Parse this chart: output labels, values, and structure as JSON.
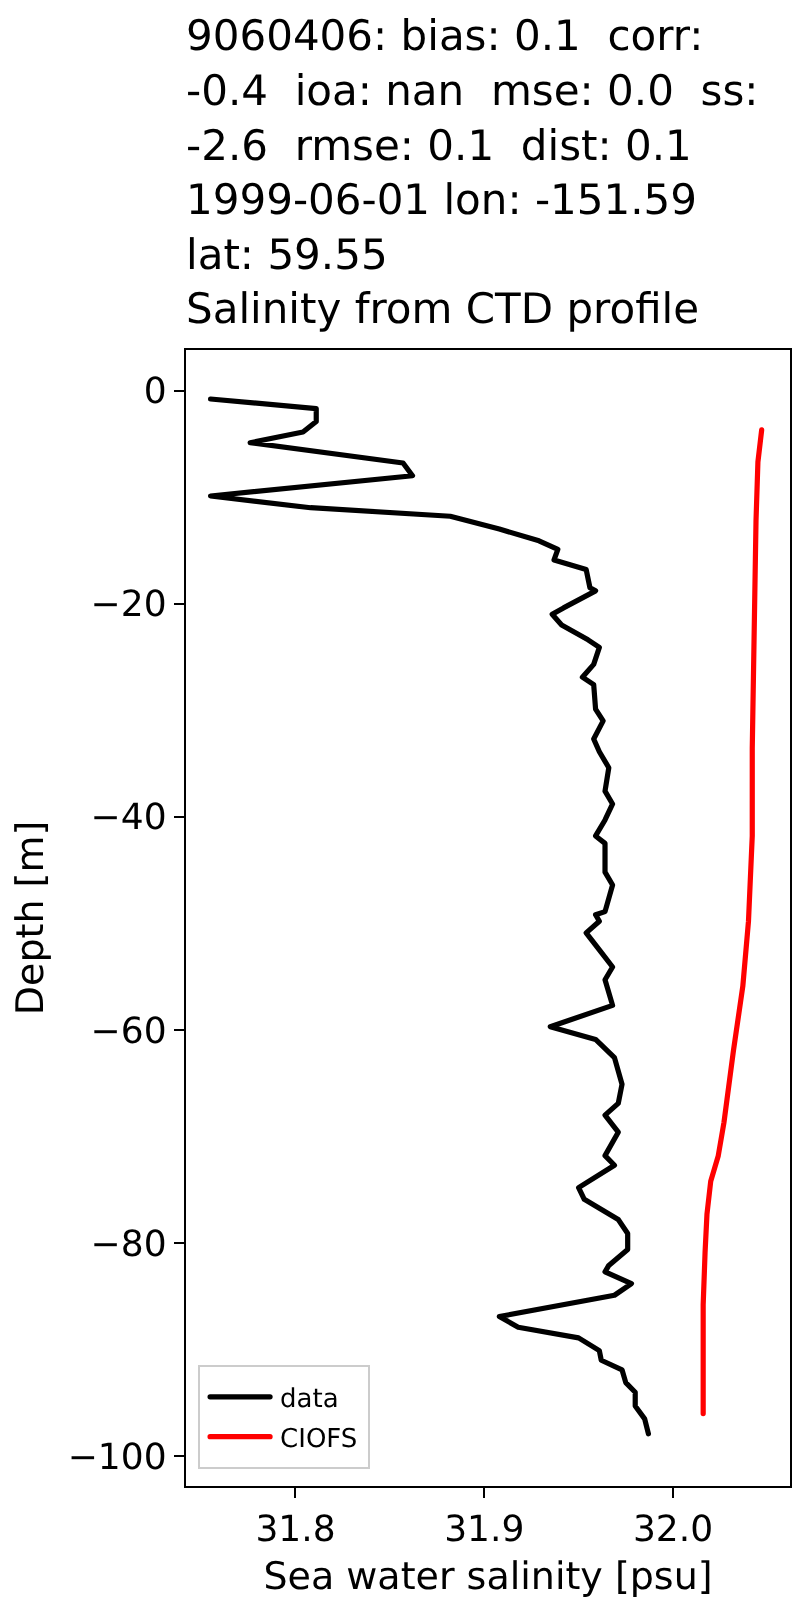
{
  "chart_data": {
    "type": "line",
    "title": "9060406: bias: 0.1  corr:\n-0.4  ioa: nan  mse: 0.0  ss:\n-2.6  rmse: 0.1  dist: 0.1\n1999-06-01 lon: -151.59\nlat: 59.55\nSalinity from CTD profile",
    "xlabel": "Sea water salinity [psu]",
    "ylabel": "Depth [m]",
    "xlim": [
      31.742,
      32.062
    ],
    "xticks": [
      31.8,
      31.9,
      {
        "value": 32,
        "label": "32.0"
      }
    ],
    "ylim": [
      -102.8,
      3.8
    ],
    "yticks": [
      {
        "value": -100,
        "label": "−100"
      },
      {
        "value": -80,
        "label": "−80"
      },
      {
        "value": -60,
        "label": "−60"
      },
      {
        "value": -40,
        "label": "−40"
      },
      {
        "value": -20,
        "label": "−20"
      },
      0
    ],
    "grid": false,
    "legend": "bottom left",
    "series": [
      {
        "name": "data",
        "color": "#000000",
        "x": [
          31.755,
          31.811,
          31.811,
          31.804,
          31.776,
          31.857,
          31.862,
          31.755,
          31.808,
          31.882,
          31.908,
          31.929,
          31.939,
          31.937,
          31.954,
          31.956,
          31.959,
          31.942,
          31.936,
          31.941,
          31.955,
          31.961,
          31.958,
          31.952,
          31.958,
          31.959,
          31.963,
          31.958,
          31.961,
          31.966,
          31.964,
          31.968,
          31.964,
          31.959,
          31.964,
          31.964,
          31.968,
          31.964,
          31.959,
          31.961,
          31.954,
          31.961,
          31.968,
          31.964,
          31.968,
          31.935,
          31.959,
          31.969,
          31.973,
          31.971,
          31.964,
          31.971,
          31.964,
          31.969,
          31.95,
          31.953,
          31.971,
          31.976,
          31.976,
          31.966,
          31.964,
          31.978,
          31.969,
          31.908,
          31.918,
          31.95,
          31.961,
          31.962,
          31.973,
          31.975,
          31.98,
          31.98,
          31.985,
          31.987
        ],
        "values": [
          -0.8,
          -1.7,
          -2.9,
          -3.9,
          -4.9,
          -6.8,
          -8.0,
          -9.9,
          -11.0,
          -11.8,
          -13.0,
          -14.1,
          -14.9,
          -15.9,
          -16.8,
          -18.5,
          -18.8,
          -20.4,
          -21.0,
          -22.0,
          -23.4,
          -24.1,
          -25.7,
          -26.9,
          -27.6,
          -29.9,
          -31.0,
          -32.7,
          -33.9,
          -35.4,
          -37.6,
          -38.8,
          -40.3,
          -41.8,
          -42.5,
          -45.2,
          -46.4,
          -48.9,
          -49.2,
          -49.8,
          -50.9,
          -52.5,
          -54.1,
          -55.3,
          -57.7,
          -59.7,
          -60.9,
          -62.6,
          -65.1,
          -66.9,
          -68.0,
          -69.6,
          -71.8,
          -72.7,
          -74.8,
          -75.9,
          -77.8,
          -79.1,
          -80.6,
          -82.1,
          -82.7,
          -83.8,
          -84.9,
          -86.9,
          -87.9,
          -88.9,
          -90.1,
          -91.0,
          -91.9,
          -93.1,
          -94.0,
          -95.3,
          -96.5,
          -97.9
        ]
      },
      {
        "name": "CIOFS",
        "color": "#ff0000",
        "x": [
          32.047,
          32.045,
          32.044,
          32.042,
          32.042,
          32.04,
          32.037,
          32.032,
          32.027,
          32.024,
          32.02,
          32.018,
          32.017,
          32.016,
          32.016
        ],
        "values": [
          -3.7,
          -6.7,
          -12.2,
          -33.6,
          -41.8,
          -49.8,
          -55.9,
          -62.0,
          -68.7,
          -71.8,
          -74.2,
          -77.3,
          -80.9,
          -85.8,
          -96.0
        ]
      }
    ]
  }
}
